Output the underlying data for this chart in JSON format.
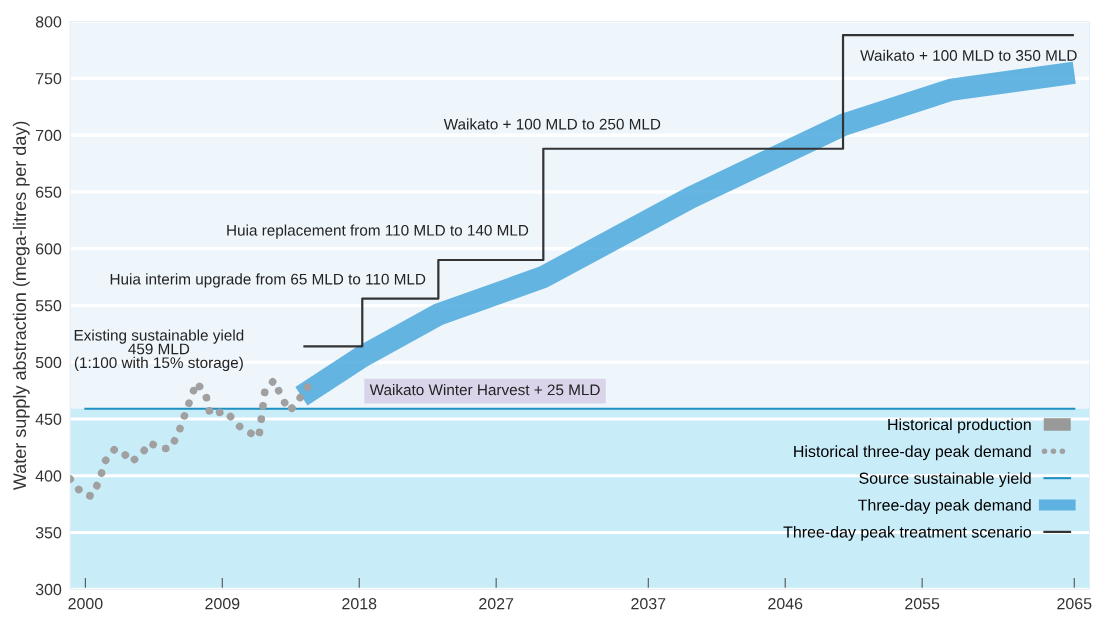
{
  "chart_data": {
    "type": "line",
    "ylabel": "Water supply abstraction (mega-litres per day)",
    "xlim": [
      1999,
      2066
    ],
    "ylim": [
      300,
      800
    ],
    "xticks": [
      2000,
      2009,
      2018,
      2027,
      2037,
      2046,
      2055,
      2065
    ],
    "yticks": [
      300,
      350,
      400,
      450,
      500,
      550,
      600,
      650,
      700,
      750,
      800
    ],
    "grid": "y",
    "legend": "bottom right",
    "bands": [
      {
        "axis": "y",
        "from": 300,
        "to": 459,
        "color": "#c8ecf8"
      }
    ],
    "series": [
      {
        "name": "Historical production",
        "color": "#999999",
        "line_style": "solid"
      },
      {
        "name": "Historical three-day peak demand",
        "color": "#a0a0a0",
        "line_style": "dotted",
        "x": [
          1999.0,
          1999.8,
          2000.4,
          2000.9,
          2001.3,
          2001.9,
          2002.4,
          2003.0,
          2003.7,
          2004.2,
          2005.0,
          2005.6,
          2006.1,
          2006.7,
          2007.3,
          2007.9,
          2008.2,
          2008.6,
          2009.2,
          2010.3,
          2011.4,
          2011.6,
          2011.8,
          2012.4,
          2012.9,
          2013.4,
          2014.0,
          2014.5,
          2014.9
        ],
        "values": [
          397,
          384,
          382,
          395,
          413,
          423,
          422,
          412,
          419,
          429,
          424,
          424,
          437,
          460,
          482,
          472,
          454,
          455,
          457,
          441,
          434,
          454,
          475,
          484,
          469,
          457,
          466,
          478,
          478
        ]
      },
      {
        "name": "Source sustainable yield",
        "color": "#1f8fc4",
        "line_style": "solid",
        "x": [
          2000,
          2065
        ],
        "values": [
          459,
          459
        ]
      },
      {
        "name": "Three-day peak demand",
        "color": "#4ba8dd",
        "line_style": "solid",
        "x": [
          2014.2,
          2018.2,
          2023.2,
          2030.1,
          2039.8,
          2049.8,
          2056.9,
          2065
        ],
        "values": [
          470,
          505,
          542,
          575,
          645,
          709,
          740,
          755
        ]
      },
      {
        "name": "Three-day peak treatment scenario",
        "type": "step",
        "color": "#333333",
        "line_style": "solid",
        "x": [
          2014.4,
          2018.2,
          2023.2,
          2030.1,
          2049.8,
          2064.9
        ],
        "values": [
          514,
          556,
          590,
          688,
          788,
          788
        ]
      }
    ],
    "annotations": [
      "Existing sustainable yield\n459 MLD\n(1:100 with 15% storage)",
      "Huia interim upgrade from 65 MLD to 110 MLD",
      "Huia replacement from 110 MLD to 140 MLD",
      "Waikato + 100 MLD to 250 MLD",
      "Waikato + 100 MLD to 350 MLD",
      "Waikato Winter Harvest + 25 MLD"
    ]
  }
}
